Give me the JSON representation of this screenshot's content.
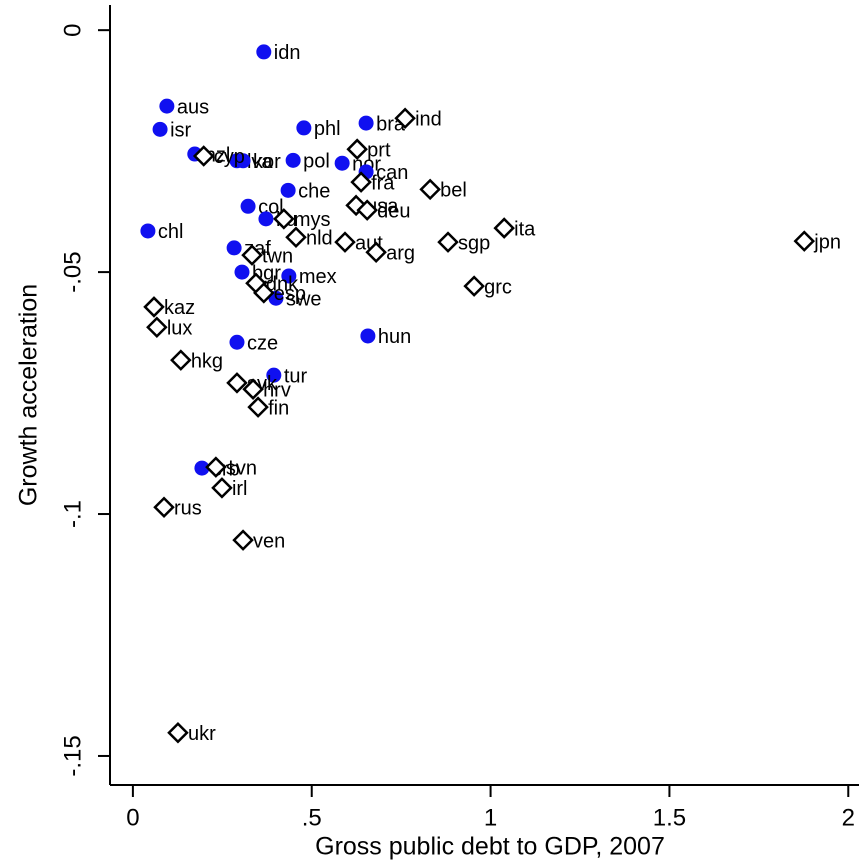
{
  "chart_data": {
    "type": "scatter",
    "x_label": "Gross public debt to GDP, 2007",
    "y_label": "Growth acceleration",
    "xlim": [
      -0.064,
      2.03
    ],
    "ylim": [
      -0.156,
      0.0052
    ],
    "xticks": [
      0,
      {
        "value": 0.5,
        "label": ".5"
      },
      1,
      1.5,
      2
    ],
    "yticks": [
      0,
      {
        "value": -0.05,
        "label": "-.05"
      },
      {
        "value": -0.1,
        "label": "-.1"
      },
      {
        "value": -0.15,
        "label": "-.15"
      }
    ],
    "series": [
      {
        "color": "#1010f0",
        "marker": "circle",
        "labels": [
          "idn",
          "aus",
          "isr",
          "phl",
          "bra",
          "nzl",
          "lva",
          "kor",
          "pol",
          "nor",
          "can",
          "che",
          "col",
          "ltu",
          "chl",
          "zaf",
          "bgr",
          "mex",
          "swe",
          "hun",
          "cze",
          "tur",
          "srb"
        ],
        "x": [
          0.366,
          0.095,
          0.076,
          0.478,
          0.652,
          0.173,
          0.291,
          0.308,
          0.448,
          0.585,
          0.652,
          0.434,
          0.322,
          0.372,
          0.042,
          0.283,
          0.305,
          0.436,
          0.4,
          0.657,
          0.291,
          0.394,
          0.193
        ],
        "values": [
          -0.0045,
          -0.0157,
          -0.0205,
          -0.0202,
          -0.0192,
          -0.0256,
          -0.027,
          -0.027,
          -0.0269,
          -0.0275,
          -0.0293,
          -0.0331,
          -0.0364,
          -0.039,
          -0.0415,
          -0.045,
          -0.05,
          -0.0508,
          -0.0554,
          -0.0632,
          -0.0645,
          -0.0713,
          -0.0905
        ]
      },
      {
        "color": "#000000",
        "marker": "diamond",
        "labels": [
          "ind",
          "prt",
          "cyp",
          "fra",
          "bel",
          "usa",
          "deu",
          "ita",
          "jpn",
          "sgp",
          "aut",
          "arg",
          "nld",
          "mys",
          "grc",
          "twn",
          "dnk",
          "esp",
          "kaz",
          "lux",
          "hkg",
          "svk",
          "hrv",
          "fin",
          "svn",
          "irl",
          "rus",
          "ven",
          "ukr"
        ],
        "x": [
          0.761,
          0.627,
          0.198,
          0.638,
          0.831,
          0.624,
          0.655,
          1.038,
          1.877,
          0.881,
          0.593,
          0.68,
          0.456,
          0.422,
          0.954,
          0.333,
          0.344,
          0.366,
          0.059,
          0.067,
          0.134,
          0.291,
          0.336,
          0.35,
          0.232,
          0.249,
          0.087,
          0.308,
          0.126
        ],
        "values": [
          -0.0182,
          -0.0246,
          -0.026,
          -0.0314,
          -0.0329,
          -0.0362,
          -0.0372,
          -0.0409,
          -0.0436,
          -0.0438,
          -0.0438,
          -0.0459,
          -0.0428,
          -0.039,
          -0.0529,
          -0.0465,
          -0.0523,
          -0.0543,
          -0.0572,
          -0.0614,
          -0.0682,
          -0.0729,
          -0.0742,
          -0.0779,
          -0.0903,
          -0.0946,
          -0.0986,
          -0.1054,
          -0.1452
        ]
      }
    ]
  }
}
